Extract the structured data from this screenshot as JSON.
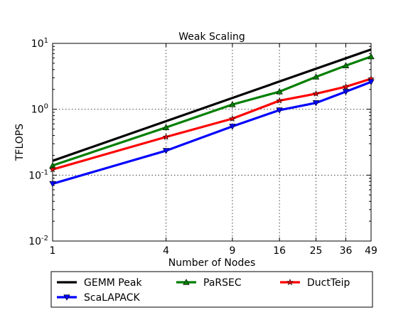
{
  "chart_data": {
    "type": "line",
    "title": "Weak Scaling",
    "xlabel": "Number of Nodes",
    "ylabel": "TFLOPS",
    "x_scale": "log",
    "y_scale": "log",
    "xlim": [
      1,
      49
    ],
    "ylim": [
      0.01,
      10
    ],
    "x_ticks": [
      1,
      4,
      9,
      16,
      25,
      36,
      49
    ],
    "y_ticks": [
      {
        "value": 0.01,
        "base": "10",
        "exp": "-2"
      },
      {
        "value": 0.1,
        "base": "10",
        "exp": "-1"
      },
      {
        "value": 1,
        "base": "10",
        "exp": "0"
      },
      {
        "value": 10,
        "base": "10",
        "exp": "1"
      }
    ],
    "grid": true,
    "legend_position": "bottom, outside plot",
    "series": [
      {
        "name": "GEMM Peak",
        "color": "#000000",
        "marker": "none",
        "x": [
          1,
          49
        ],
        "y": [
          0.165,
          8.08
        ]
      },
      {
        "name": "PaRSEC",
        "color": "#007f00",
        "marker": "triangle-up",
        "x": [
          1,
          4,
          9,
          16,
          25,
          36,
          49
        ],
        "y": [
          0.14,
          0.53,
          1.18,
          1.85,
          3.1,
          4.6,
          6.3
        ]
      },
      {
        "name": "DuctTeip",
        "color": "#ff0000",
        "marker": "star",
        "x": [
          1,
          4,
          9,
          16,
          25,
          36,
          49
        ],
        "y": [
          0.122,
          0.38,
          0.72,
          1.35,
          1.72,
          2.2,
          2.9
        ]
      },
      {
        "name": "ScaLAPACK",
        "color": "#0000ff",
        "marker": "triangle-down",
        "x": [
          1,
          4,
          9,
          16,
          25,
          36,
          49
        ],
        "y": [
          0.074,
          0.235,
          0.55,
          0.97,
          1.25,
          1.85,
          2.6
        ]
      }
    ]
  }
}
